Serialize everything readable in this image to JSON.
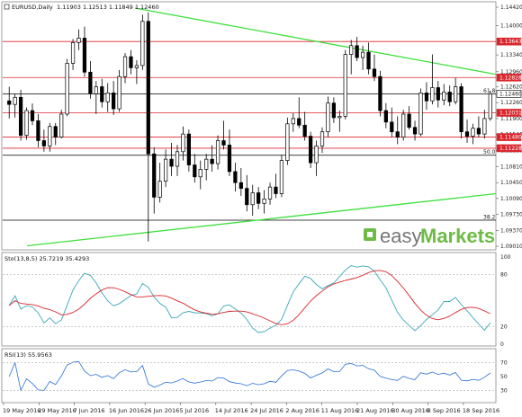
{
  "header": {
    "symbol": "EURUSD,Daily",
    "ohlc": "1.11903 1.12513 1.11849 1.12460"
  },
  "price_axis": {
    "ticks": [
      "1.14420",
      "1.14000",
      "1.13340",
      "1.12960",
      "1.12620",
      "1.12260",
      "1.11900",
      "1.11540",
      "1.11180",
      "1.10810",
      "1.10450",
      "1.10090",
      "1.09730",
      "1.09370",
      "1.09010"
    ],
    "min": 1.0901,
    "max": 1.1442
  },
  "levels": [
    {
      "price": 1.13643,
      "label": "1.13643",
      "color": "#d9262c",
      "fib": ""
    },
    {
      "price": 1.12828,
      "label": "1.12828",
      "color": "#d9262c",
      "fib": ""
    },
    {
      "price": 1.1246,
      "label": "1.12460",
      "color": "#000000",
      "fib": "61.8"
    },
    {
      "price": 1.12031,
      "label": "1.12031",
      "color": "#d9262c",
      "fib": ""
    },
    {
      "price": 1.1148,
      "label": "1.11480",
      "color": "#d9262c",
      "fib": ""
    },
    {
      "price": 1.11228,
      "label": "1.11228",
      "color": "#d9262c",
      "fib": ""
    },
    {
      "price": 1.1107,
      "label": "",
      "color": "#000000",
      "fib": "50.0"
    },
    {
      "price": 1.096,
      "label": "",
      "color": "#000000",
      "fib": "38.2"
    }
  ],
  "brand": {
    "left": "easy",
    "right": "Markets"
  },
  "stoch": {
    "title": "Sto(13,8,5) 25.7219 35.4293",
    "ticks": [
      "100",
      "80",
      "20",
      "0"
    ],
    "main_color": "#3aa7b7",
    "signal_color": "#d9262c"
  },
  "rsi": {
    "title": "RSI(13) 55.9563",
    "ticks": [
      "70",
      "50",
      "30"
    ],
    "color": "#2a6fd6"
  },
  "dates": [
    "19 May 2016",
    "29 May 2016",
    "7 Jun 2016",
    "16 Jun 2016",
    "26 Jun 2016",
    "5 Jul 2016",
    "14 Jul 2016",
    "24 Jul 2016",
    "2 Aug 2016",
    "11 Aug 2016",
    "21 Aug 2016",
    "30 Aug 2016",
    "8 Sep 2016",
    "18 Sep 2016"
  ],
  "colors": {
    "trendline": "#3ee03e",
    "bull": "#ffffff",
    "bear": "#000000",
    "current_price_box": "#ffffff"
  },
  "chart_data": {
    "type": "candlestick",
    "symbol": "EURUSD",
    "timeframe": "Daily",
    "ylim": [
      1.0901,
      1.1442
    ],
    "candles": [
      {
        "o": 1.123,
        "h": 1.1262,
        "l": 1.119,
        "c": 1.1222
      },
      {
        "o": 1.1222,
        "h": 1.1245,
        "l": 1.1192,
        "c": 1.1238
      },
      {
        "o": 1.1238,
        "h": 1.1255,
        "l": 1.114,
        "c": 1.1152
      },
      {
        "o": 1.1152,
        "h": 1.1215,
        "l": 1.1142,
        "c": 1.1208
      },
      {
        "o": 1.1208,
        "h": 1.1224,
        "l": 1.1175,
        "c": 1.1185
      },
      {
        "o": 1.1185,
        "h": 1.12,
        "l": 1.1125,
        "c": 1.114
      },
      {
        "o": 1.114,
        "h": 1.1165,
        "l": 1.1115,
        "c": 1.1128
      },
      {
        "o": 1.1128,
        "h": 1.118,
        "l": 1.1115,
        "c": 1.1172
      },
      {
        "o": 1.1172,
        "h": 1.118,
        "l": 1.113,
        "c": 1.1148
      },
      {
        "o": 1.1148,
        "h": 1.121,
        "l": 1.1145,
        "c": 1.12
      },
      {
        "o": 1.12,
        "h": 1.1325,
        "l": 1.1195,
        "c": 1.1315
      },
      {
        "o": 1.1315,
        "h": 1.137,
        "l": 1.13,
        "c": 1.1362
      },
      {
        "o": 1.1362,
        "h": 1.1392,
        "l": 1.1345,
        "c": 1.1372
      },
      {
        "o": 1.1372,
        "h": 1.1398,
        "l": 1.1285,
        "c": 1.1295
      },
      {
        "o": 1.1295,
        "h": 1.132,
        "l": 1.1235,
        "c": 1.1246
      },
      {
        "o": 1.1246,
        "h": 1.1275,
        "l": 1.12,
        "c": 1.1262
      },
      {
        "o": 1.1262,
        "h": 1.128,
        "l": 1.1215,
        "c": 1.1228
      },
      {
        "o": 1.1228,
        "h": 1.127,
        "l": 1.1205,
        "c": 1.1248
      },
      {
        "o": 1.1248,
        "h": 1.1275,
        "l": 1.1198,
        "c": 1.1212
      },
      {
        "o": 1.1212,
        "h": 1.13,
        "l": 1.1205,
        "c": 1.1285
      },
      {
        "o": 1.1285,
        "h": 1.1338,
        "l": 1.127,
        "c": 1.133
      },
      {
        "o": 1.133,
        "h": 1.1345,
        "l": 1.129,
        "c": 1.1305
      },
      {
        "o": 1.1305,
        "h": 1.1322,
        "l": 1.1268,
        "c": 1.131
      },
      {
        "o": 1.131,
        "h": 1.1425,
        "l": 1.13,
        "c": 1.141
      },
      {
        "o": 1.141,
        "h": 1.143,
        "l": 1.0912,
        "c": 1.111
      },
      {
        "o": 1.111,
        "h": 1.1125,
        "l": 1.0975,
        "c": 1.1012
      },
      {
        "o": 1.1012,
        "h": 1.109,
        "l": 1.1,
        "c": 1.1048
      },
      {
        "o": 1.1048,
        "h": 1.112,
        "l": 1.1035,
        "c": 1.1098
      },
      {
        "o": 1.1098,
        "h": 1.1135,
        "l": 1.106,
        "c": 1.1082
      },
      {
        "o": 1.1082,
        "h": 1.113,
        "l": 1.106,
        "c": 1.1115
      },
      {
        "o": 1.1115,
        "h": 1.1172,
        "l": 1.1095,
        "c": 1.1155
      },
      {
        "o": 1.1155,
        "h": 1.1165,
        "l": 1.107,
        "c": 1.1085
      },
      {
        "o": 1.1085,
        "h": 1.111,
        "l": 1.1045,
        "c": 1.1058
      },
      {
        "o": 1.1058,
        "h": 1.1095,
        "l": 1.103,
        "c": 1.1075
      },
      {
        "o": 1.1075,
        "h": 1.111,
        "l": 1.105,
        "c": 1.1098
      },
      {
        "o": 1.1098,
        "h": 1.113,
        "l": 1.107,
        "c": 1.1088
      },
      {
        "o": 1.1088,
        "h": 1.1152,
        "l": 1.1075,
        "c": 1.114
      },
      {
        "o": 1.114,
        "h": 1.1185,
        "l": 1.112,
        "c": 1.113
      },
      {
        "o": 1.113,
        "h": 1.1165,
        "l": 1.106,
        "c": 1.107
      },
      {
        "o": 1.107,
        "h": 1.109,
        "l": 1.1025,
        "c": 1.1045
      },
      {
        "o": 1.1045,
        "h": 1.1078,
        "l": 1.1015,
        "c": 1.1032
      },
      {
        "o": 1.1032,
        "h": 1.1062,
        "l": 1.098,
        "c": 1.0995
      },
      {
        "o": 1.0995,
        "h": 1.104,
        "l": 1.097,
        "c": 1.1022
      },
      {
        "o": 1.1022,
        "h": 1.1035,
        "l": 1.0985,
        "c": 1.0998
      },
      {
        "o": 1.0998,
        "h": 1.1028,
        "l": 1.0975,
        "c": 1.1008
      },
      {
        "o": 1.1008,
        "h": 1.1045,
        "l": 1.0995,
        "c": 1.1035
      },
      {
        "o": 1.1035,
        "h": 1.1065,
        "l": 1.101,
        "c": 1.102
      },
      {
        "o": 1.102,
        "h": 1.1108,
        "l": 1.1012,
        "c": 1.1095
      },
      {
        "o": 1.1095,
        "h": 1.1192,
        "l": 1.1085,
        "c": 1.1178
      },
      {
        "o": 1.1178,
        "h": 1.1202,
        "l": 1.116,
        "c": 1.119
      },
      {
        "o": 1.119,
        "h": 1.1238,
        "l": 1.1168,
        "c": 1.1175
      },
      {
        "o": 1.1175,
        "h": 1.1205,
        "l": 1.114,
        "c": 1.115
      },
      {
        "o": 1.115,
        "h": 1.116,
        "l": 1.1078,
        "c": 1.109
      },
      {
        "o": 1.109,
        "h": 1.114,
        "l": 1.106,
        "c": 1.1128
      },
      {
        "o": 1.1128,
        "h": 1.117,
        "l": 1.1112,
        "c": 1.116
      },
      {
        "o": 1.116,
        "h": 1.124,
        "l": 1.1148,
        "c": 1.1225
      },
      {
        "o": 1.1225,
        "h": 1.1238,
        "l": 1.118,
        "c": 1.1192
      },
      {
        "o": 1.1192,
        "h": 1.1208,
        "l": 1.116,
        "c": 1.1195
      },
      {
        "o": 1.1195,
        "h": 1.1345,
        "l": 1.1188,
        "c": 1.1335
      },
      {
        "o": 1.1335,
        "h": 1.1368,
        "l": 1.129,
        "c": 1.1355
      },
      {
        "o": 1.1355,
        "h": 1.1375,
        "l": 1.132,
        "c": 1.1328
      },
      {
        "o": 1.1328,
        "h": 1.1355,
        "l": 1.13,
        "c": 1.134
      },
      {
        "o": 1.134,
        "h": 1.1362,
        "l": 1.129,
        "c": 1.1302
      },
      {
        "o": 1.1302,
        "h": 1.1335,
        "l": 1.1275,
        "c": 1.1285
      },
      {
        "o": 1.1285,
        "h": 1.1298,
        "l": 1.1195,
        "c": 1.1208
      },
      {
        "o": 1.1208,
        "h": 1.1225,
        "l": 1.1168,
        "c": 1.1182
      },
      {
        "o": 1.1182,
        "h": 1.1215,
        "l": 1.1148,
        "c": 1.116
      },
      {
        "o": 1.116,
        "h": 1.1195,
        "l": 1.1132,
        "c": 1.1148
      },
      {
        "o": 1.1148,
        "h": 1.121,
        "l": 1.114,
        "c": 1.12
      },
      {
        "o": 1.12,
        "h": 1.1218,
        "l": 1.1165,
        "c": 1.117
      },
      {
        "o": 1.117,
        "h": 1.1185,
        "l": 1.114,
        "c": 1.1155
      },
      {
        "o": 1.1155,
        "h": 1.1258,
        "l": 1.115,
        "c": 1.1248
      },
      {
        "o": 1.1248,
        "h": 1.1272,
        "l": 1.121,
        "c": 1.123
      },
      {
        "o": 1.123,
        "h": 1.1335,
        "l": 1.1222,
        "c": 1.126
      },
      {
        "o": 1.126,
        "h": 1.1275,
        "l": 1.1215,
        "c": 1.1232
      },
      {
        "o": 1.1232,
        "h": 1.1268,
        "l": 1.122,
        "c": 1.125
      },
      {
        "o": 1.125,
        "h": 1.1265,
        "l": 1.1218,
        "c": 1.1228
      },
      {
        "o": 1.1228,
        "h": 1.1282,
        "l": 1.1222,
        "c": 1.1262
      },
      {
        "o": 1.1262,
        "h": 1.127,
        "l": 1.1145,
        "c": 1.116
      },
      {
        "o": 1.116,
        "h": 1.1188,
        "l": 1.1135,
        "c": 1.115
      },
      {
        "o": 1.115,
        "h": 1.1178,
        "l": 1.1132,
        "c": 1.1168
      },
      {
        "o": 1.1168,
        "h": 1.1195,
        "l": 1.1148,
        "c": 1.1155
      },
      {
        "o": 1.1155,
        "h": 1.121,
        "l": 1.1145,
        "c": 1.119
      },
      {
        "o": 1.119,
        "h": 1.1253,
        "l": 1.1185,
        "c": 1.1246
      }
    ]
  }
}
